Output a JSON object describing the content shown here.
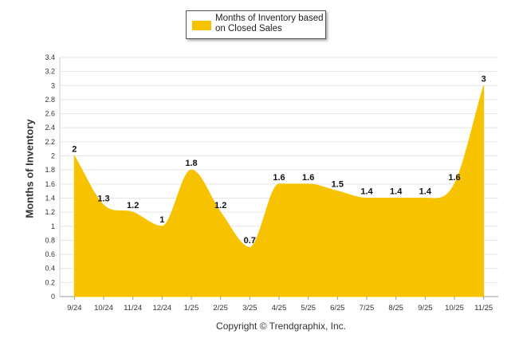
{
  "chart_data": {
    "type": "area",
    "categories": [
      "9/24",
      "10/24",
      "11/24",
      "12/24",
      "1/25",
      "2/25",
      "3/25",
      "4/25",
      "5/25",
      "6/25",
      "7/25",
      "8/25",
      "9/25",
      "10/25",
      "11/25"
    ],
    "series": [
      {
        "name": "Months of Inventory based on Closed Sales",
        "values": [
          2,
          1.3,
          1.2,
          1,
          1.8,
          1.2,
          0.7,
          1.6,
          1.6,
          1.5,
          1.4,
          1.4,
          1.4,
          1.6,
          3
        ],
        "data_labels": [
          "2",
          "1.3",
          "1.2",
          "1",
          "1.8",
          "1.2",
          "0.7",
          "1.6",
          "1.6",
          "1.5",
          "1.4",
          "1.4",
          "1.4",
          "1.6",
          "3"
        ]
      }
    ],
    "ylabel": "Months of Inventory",
    "xlabel": "",
    "ylim": [
      0,
      3.4
    ],
    "yticks": [
      "0",
      "0.2",
      "0.4",
      "0.6",
      "0.8",
      "1",
      "1.2",
      "1.4",
      "1.6",
      "1.8",
      "2",
      "2.2",
      "2.4",
      "2.6",
      "2.8",
      "3",
      "3.2",
      "3.4"
    ],
    "grid": true,
    "legend_position": "top-center",
    "color": "#f7c300"
  },
  "legend": {
    "label": "Months of Inventory based on Closed Sales"
  },
  "footer": {
    "copyright": "Copyright © Trendgraphix, Inc."
  }
}
